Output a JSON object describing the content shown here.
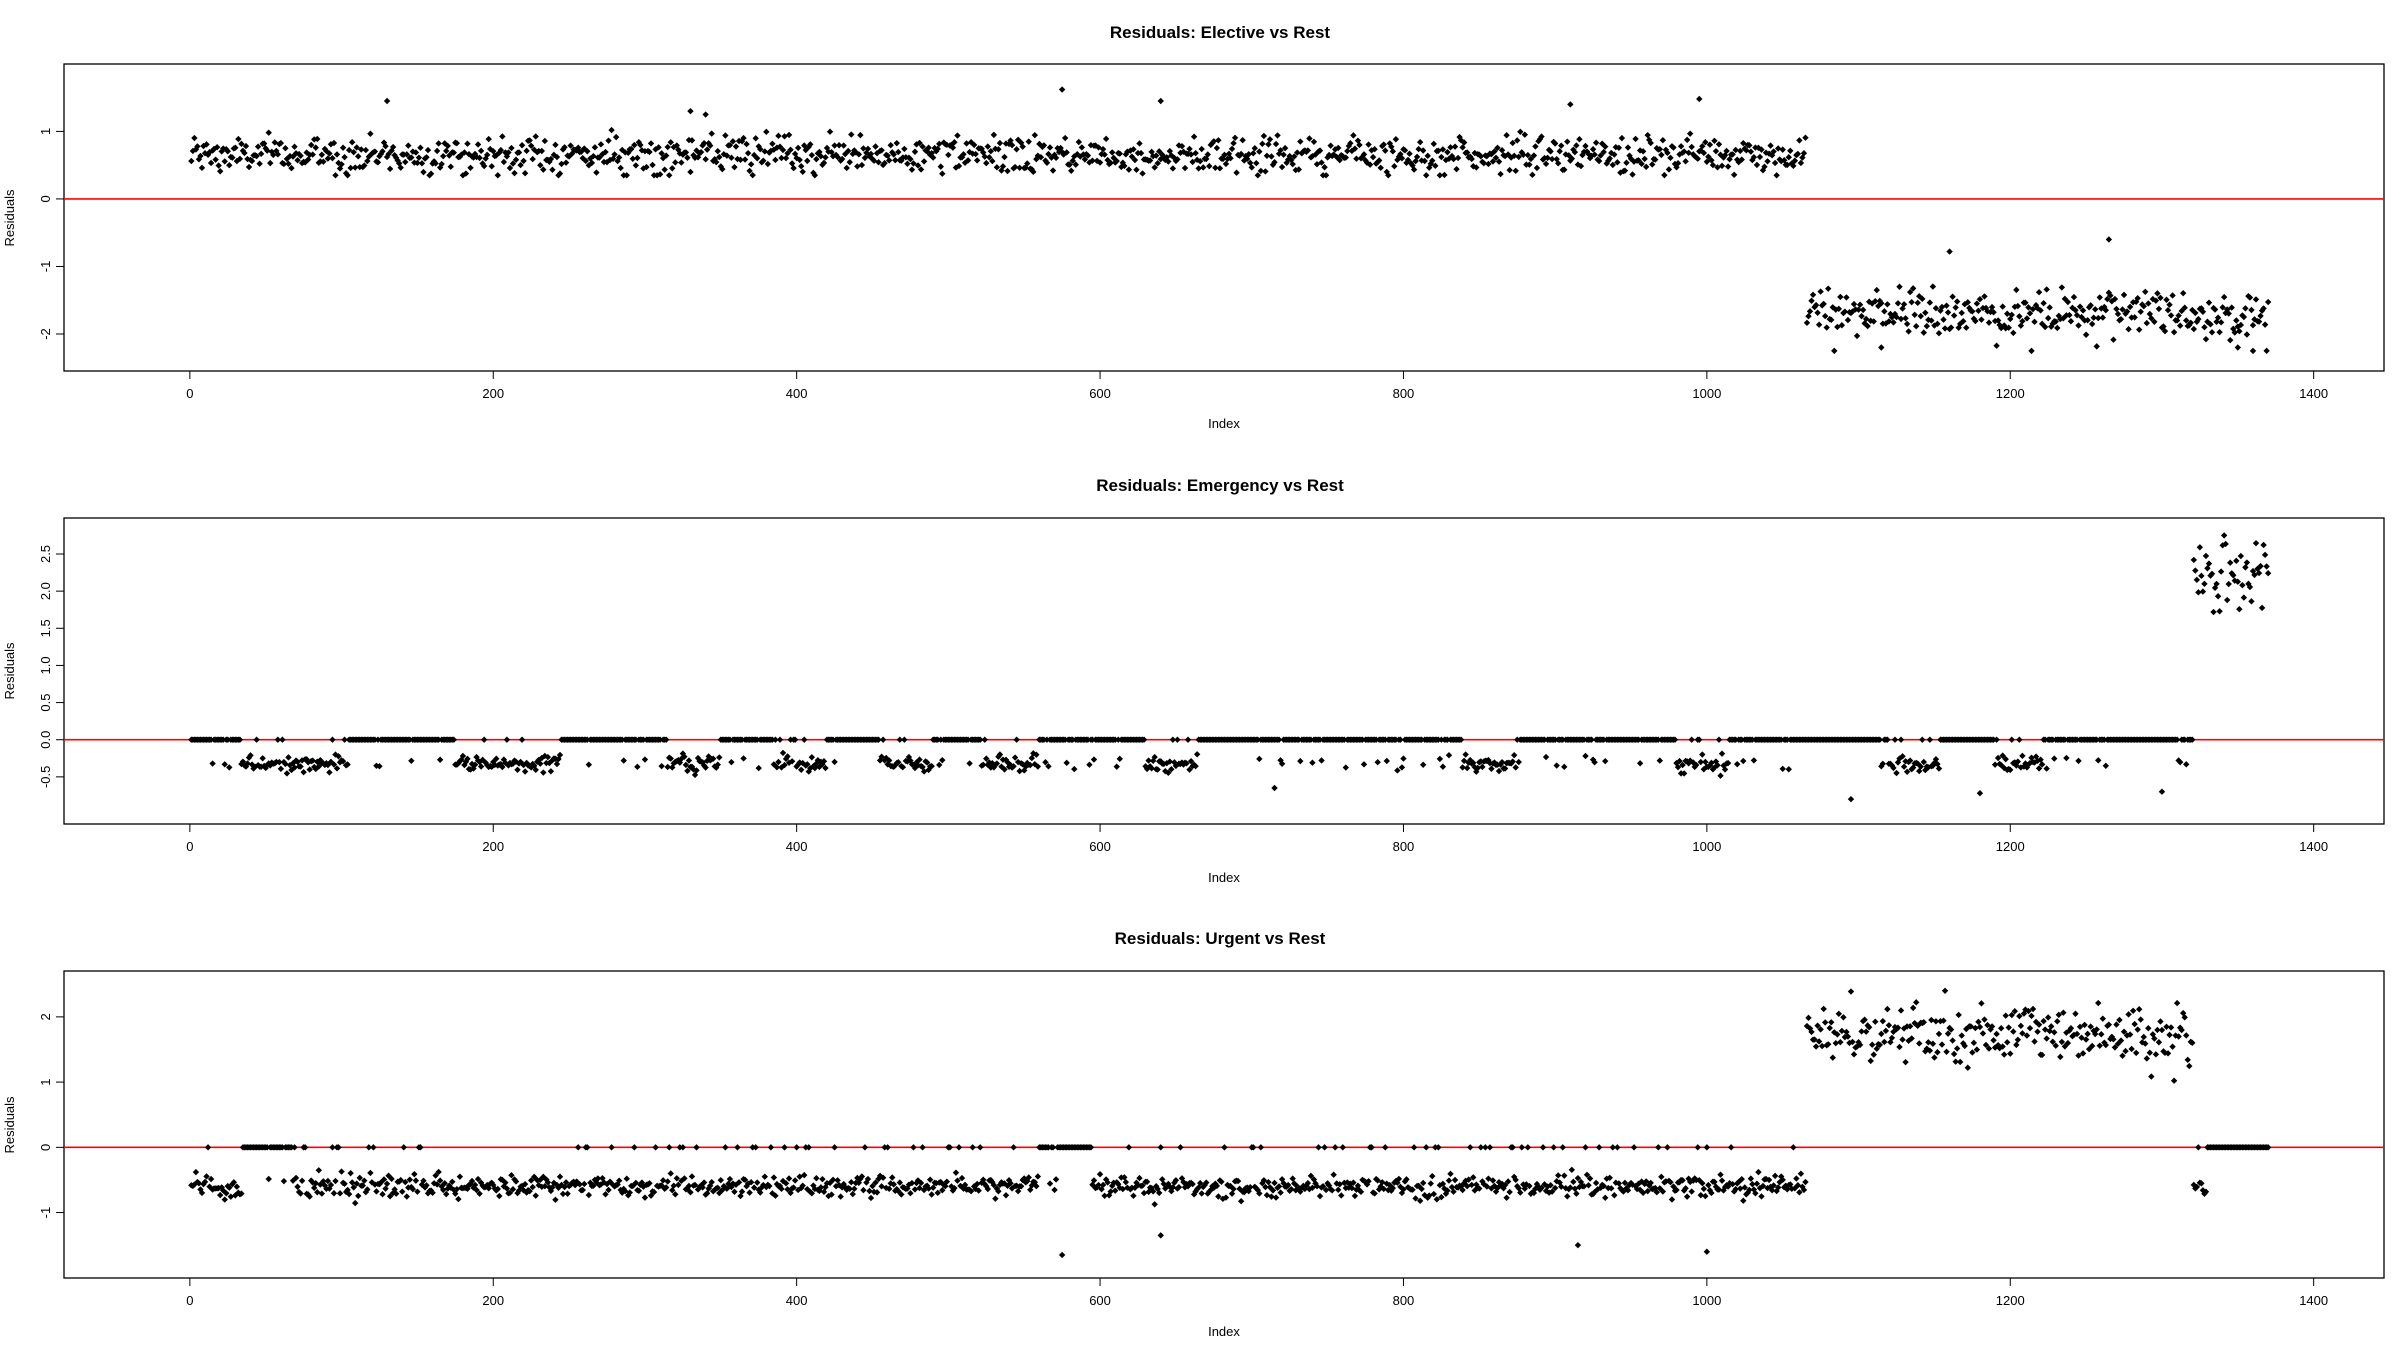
{
  "chart_data": [
    {
      "type": "scatter",
      "title": "Residuals: Elective vs Rest",
      "xlabel": "Index",
      "ylabel": "Residuals",
      "xlim": [
        -50,
        1420
      ],
      "ylim": [
        -2.4,
        1.85
      ],
      "x_ticks": [
        0,
        200,
        400,
        600,
        800,
        1000,
        1200,
        1400
      ],
      "x_tick_labels": [
        "0",
        "200",
        "400",
        "600",
        "800",
        "1000",
        "1200",
        "1400"
      ],
      "y_ticks": [
        -2,
        -1,
        0,
        1
      ],
      "y_tick_labels": [
        "-2",
        "-1",
        "0",
        "1"
      ],
      "reference_line": {
        "y": 0,
        "color": "#ff0000"
      },
      "point_color": "#000000",
      "n_points": 1370,
      "segments": [
        {
          "x_range": [
            1,
            1065
          ],
          "center": 0.65,
          "spread": 0.18,
          "min": 0.35,
          "max": 1.62,
          "notable_highs": [
            [
              130,
              1.45
            ],
            [
              330,
              1.3
            ],
            [
              340,
              1.25
            ],
            [
              575,
              1.62
            ],
            [
              640,
              1.45
            ],
            [
              910,
              1.4
            ],
            [
              995,
              1.48
            ]
          ]
        },
        {
          "x_range": [
            1066,
            1370
          ],
          "center": -1.7,
          "spread": 0.25,
          "min": -2.25,
          "max": -0.6,
          "notable_highs": [
            [
              1160,
              -0.78
            ],
            [
              1265,
              -0.6
            ]
          ],
          "notable_lows": [
            [
              1115,
              -2.2
            ],
            [
              1350,
              -2.2
            ],
            [
              1360,
              -2.25
            ]
          ]
        }
      ]
    },
    {
      "type": "scatter",
      "title": "Residuals: Emergency vs Rest",
      "xlabel": "Index",
      "ylabel": "Residuals",
      "xlim": [
        -50,
        1420
      ],
      "ylim": [
        -1.0,
        2.85
      ],
      "x_ticks": [
        0,
        200,
        400,
        600,
        800,
        1000,
        1200,
        1400
      ],
      "x_tick_labels": [
        "0",
        "200",
        "400",
        "600",
        "800",
        "1000",
        "1200",
        "1400"
      ],
      "y_ticks": [
        -0.5,
        0.0,
        0.5,
        1.0,
        1.5,
        2.0,
        2.5
      ],
      "y_tick_labels": [
        "-0.5",
        "0.0",
        "0.5",
        "1.0",
        "1.5",
        "2.0",
        "2.5"
      ],
      "reference_line": {
        "y": 0,
        "color": "#ff0000"
      },
      "point_color": "#000000",
      "n_points": 1370,
      "segments": [
        {
          "x_range": [
            1,
            1320
          ],
          "zero_fraction": 0.45,
          "negative_center": -0.32,
          "negative_spread": 0.08,
          "min": -0.8,
          "max": 0.0,
          "notable_lows": [
            [
              715,
              -0.65
            ],
            [
              1095,
              -0.8
            ],
            [
              1180,
              -0.72
            ],
            [
              1300,
              -0.7
            ]
          ]
        },
        {
          "x_range": [
            1321,
            1370
          ],
          "center": 2.2,
          "spread": 0.3,
          "min": 1.6,
          "max": 2.75
        }
      ]
    },
    {
      "type": "scatter",
      "title": "Residuals: Urgent vs Rest",
      "xlabel": "Index",
      "ylabel": "Residuals",
      "xlim": [
        -50,
        1420
      ],
      "ylim": [
        -1.85,
        2.55
      ],
      "x_ticks": [
        0,
        200,
        400,
        600,
        800,
        1000,
        1200,
        1400
      ],
      "x_tick_labels": [
        "0",
        "200",
        "400",
        "600",
        "800",
        "1000",
        "1200",
        "1400"
      ],
      "y_ticks": [
        -1,
        0,
        1,
        2
      ],
      "y_tick_labels": [
        "-1",
        "0",
        "1",
        "2"
      ],
      "reference_line": {
        "y": 0,
        "color": "#ff0000"
      },
      "point_color": "#000000",
      "n_points": 1370,
      "segments": [
        {
          "x_range": [
            1,
            1065
          ],
          "zero_fraction": 0.06,
          "negative_center": -0.6,
          "negative_spread": 0.12,
          "min": -1.65,
          "max": 0.0,
          "notable_lows": [
            [
              575,
              -1.65
            ],
            [
              1000,
              -1.6
            ],
            [
              915,
              -1.5
            ],
            [
              640,
              -1.35
            ]
          ]
        },
        {
          "x_range": [
            1066,
            1320
          ],
          "center": 1.7,
          "spread": 0.3,
          "min": 0.55,
          "max": 2.4
        },
        {
          "x_range": [
            1321,
            1370
          ],
          "zero_fraction": 0.2,
          "negative_center": -0.6,
          "negative_spread": 0.1,
          "min": -0.95,
          "max": 0.0
        }
      ]
    }
  ]
}
